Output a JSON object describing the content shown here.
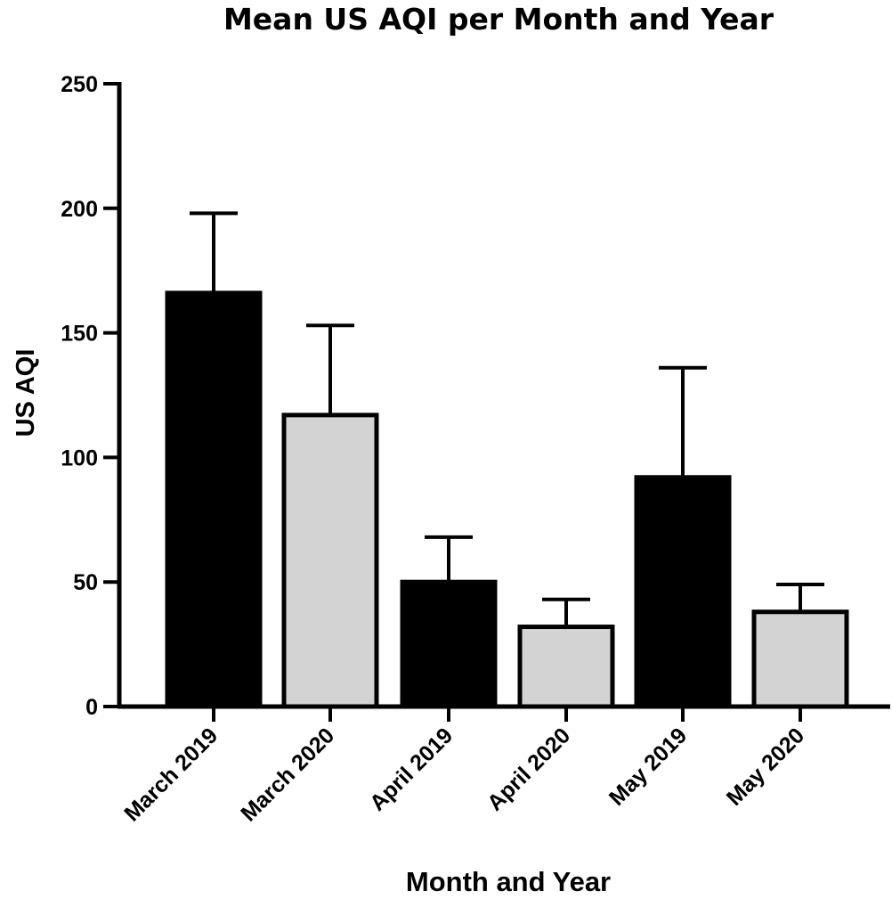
{
  "chart_data": {
    "type": "bar",
    "title": "Mean US AQI per Month and Year",
    "xlabel": "Month and Year",
    "ylabel": "US AQI",
    "ylim": [
      0,
      250
    ],
    "yticks": [
      0,
      50,
      100,
      150,
      200,
      250
    ],
    "categories": [
      "March 2019",
      "March 2020",
      "April 2019",
      "April 2020",
      "May 2019",
      "May 2020"
    ],
    "values": [
      166,
      117,
      50,
      32,
      92,
      38
    ],
    "error_upper": [
      198,
      153,
      68,
      43,
      136,
      49
    ],
    "bar_colors": [
      "#000000",
      "#d3d3d3",
      "#000000",
      "#d3d3d3",
      "#000000",
      "#d3d3d3"
    ],
    "edge_color": "#000000",
    "grid": false,
    "legend": "none"
  }
}
